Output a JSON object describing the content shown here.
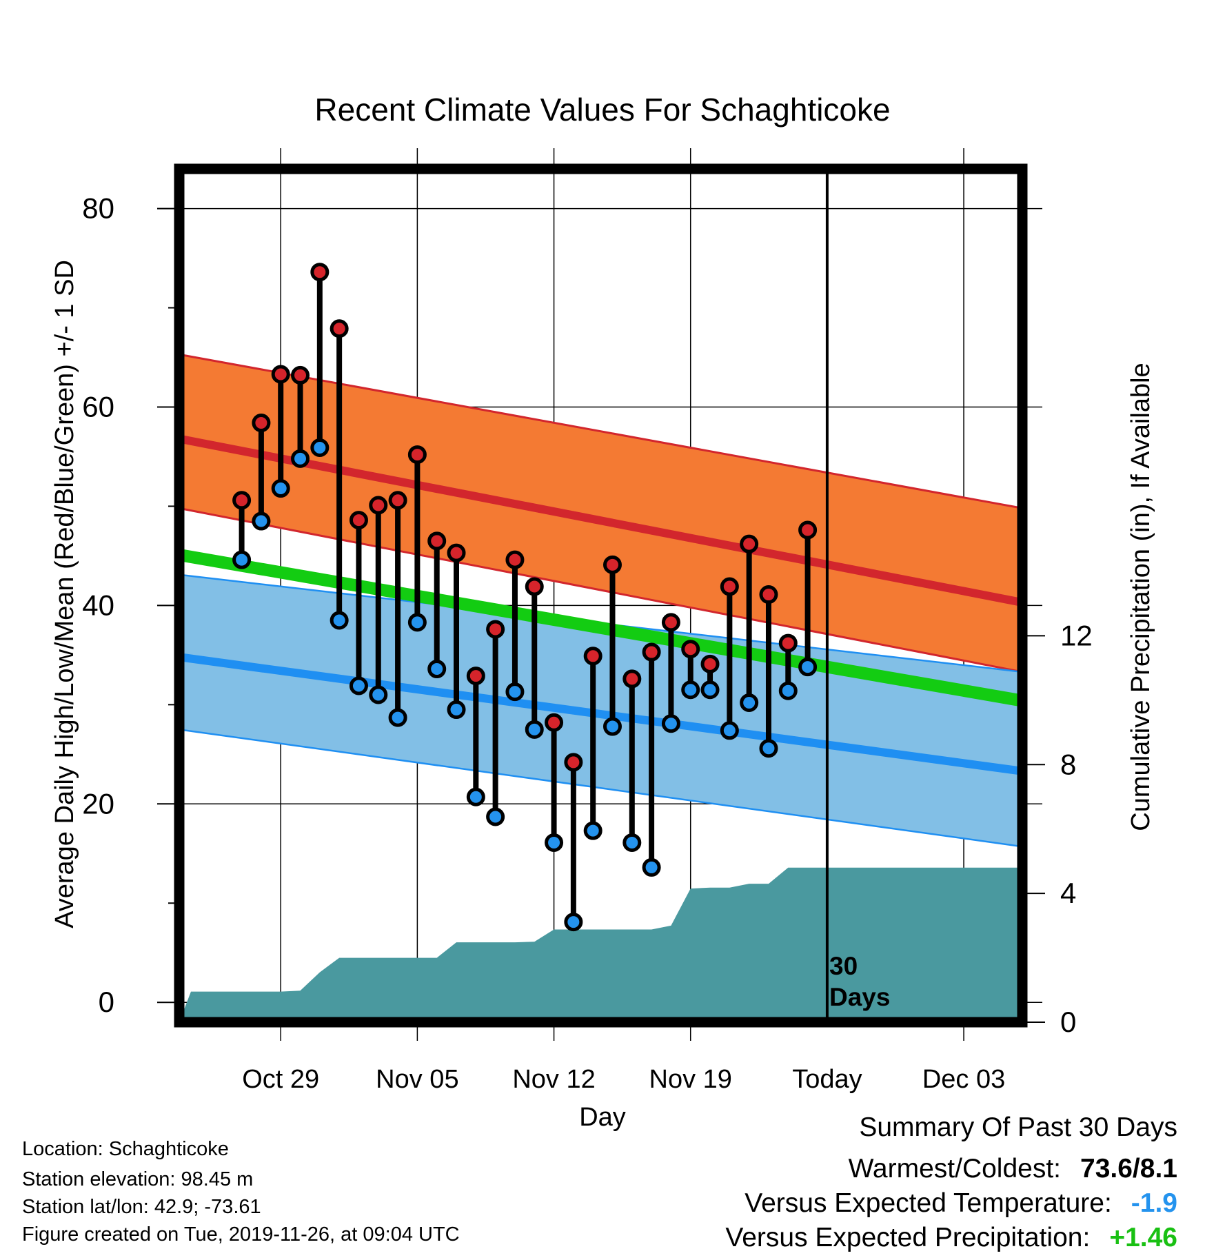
{
  "chart_data": {
    "type": "climate-range",
    "title": "Recent Climate Values For Schaghticoke",
    "xlabel": "Day",
    "ylabel_left": "Average Daily High/Low/Mean (Red/Blue/Green) +/- 1 SD",
    "ylabel_right": "Cumulative Precipitation (in), If Available",
    "x_range_days": [
      -33.2,
      10.0
    ],
    "y_range_left": [
      -2,
      84
    ],
    "y_range_right": [
      0,
      26.5
    ],
    "x_ticks": [
      {
        "day": -28,
        "label": "Oct 29"
      },
      {
        "day": -21,
        "label": "Nov 05"
      },
      {
        "day": -14,
        "label": "Nov 12"
      },
      {
        "day": -7,
        "label": "Nov 19"
      },
      {
        "day": 0,
        "label": "Today"
      },
      {
        "day": 7,
        "label": "Dec 03"
      }
    ],
    "y_ticks_left": [
      0,
      20,
      40,
      60,
      80
    ],
    "y_ticks_right": [
      0,
      4,
      8,
      12
    ],
    "today_label_line1": "30",
    "today_label_line2": "Days",
    "normals": {
      "start_day": -33.2,
      "end_day": 10.0,
      "high_plus_sd": [
        65.3,
        49.8
      ],
      "high_mean": [
        56.8,
        40.3
      ],
      "high_minus_sd": [
        49.8,
        33.3
      ],
      "mean": [
        45.1,
        30.4
      ],
      "low_plus_sd": [
        43.1,
        33.3
      ],
      "low_mean": [
        34.8,
        23.3
      ],
      "low_minus_sd": [
        27.5,
        15.7
      ]
    },
    "daily": [
      {
        "day": -30,
        "high": 50.6,
        "low": 44.6
      },
      {
        "day": -29,
        "high": 58.4,
        "low": 48.5
      },
      {
        "day": -28,
        "high": 63.3,
        "low": 51.8
      },
      {
        "day": -27,
        "high": 63.2,
        "low": 54.8
      },
      {
        "day": -26,
        "high": 73.6,
        "low": 55.9
      },
      {
        "day": -25,
        "high": 67.9,
        "low": 38.5
      },
      {
        "day": -24,
        "high": 48.6,
        "low": 31.9
      },
      {
        "day": -23,
        "high": 50.1,
        "low": 31.0
      },
      {
        "day": -22,
        "high": 50.6,
        "low": 28.7
      },
      {
        "day": -21,
        "high": 55.2,
        "low": 38.3
      },
      {
        "day": -20,
        "high": 46.5,
        "low": 33.6
      },
      {
        "day": -19,
        "high": 45.3,
        "low": 29.5
      },
      {
        "day": -18,
        "high": 32.9,
        "low": 20.7
      },
      {
        "day": -17,
        "high": 37.6,
        "low": 18.7
      },
      {
        "day": -16,
        "high": 44.6,
        "low": 31.3
      },
      {
        "day": -15,
        "high": 41.9,
        "low": 27.5
      },
      {
        "day": -14,
        "high": 28.2,
        "low": 16.1
      },
      {
        "day": -13,
        "high": 24.2,
        "low": 8.1
      },
      {
        "day": -12,
        "high": 34.9,
        "low": 17.3
      },
      {
        "day": -11,
        "high": 44.1,
        "low": 27.8
      },
      {
        "day": -10,
        "high": 32.6,
        "low": 16.1
      },
      {
        "day": -9,
        "high": 35.3,
        "low": 13.6
      },
      {
        "day": -8,
        "high": 38.3,
        "low": 28.1
      },
      {
        "day": -7,
        "high": 35.6,
        "low": 31.5
      },
      {
        "day": -6,
        "high": 34.1,
        "low": 31.5
      },
      {
        "day": -5,
        "high": 41.9,
        "low": 27.4
      },
      {
        "day": -4,
        "high": 46.2,
        "low": 30.2
      },
      {
        "day": -3,
        "high": 41.1,
        "low": 25.6
      },
      {
        "day": -2,
        "high": 36.2,
        "low": 31.4
      },
      {
        "day": -1,
        "high": 47.6,
        "low": 33.8
      }
    ],
    "precip_cumulative": [
      [
        -33.2,
        0.0
      ],
      [
        -32.6,
        0.95
      ],
      [
        -30.1,
        0.95
      ],
      [
        -29.0,
        0.95
      ],
      [
        -28.0,
        0.95
      ],
      [
        -27.0,
        0.98
      ],
      [
        -26.0,
        1.55
      ],
      [
        -25.0,
        2.0
      ],
      [
        -23.0,
        2.0
      ],
      [
        -22.0,
        2.0
      ],
      [
        -21.0,
        2.0
      ],
      [
        -20.0,
        2.0
      ],
      [
        -19.0,
        2.48
      ],
      [
        -17.0,
        2.48
      ],
      [
        -16.0,
        2.48
      ],
      [
        -15.0,
        2.5
      ],
      [
        -14.0,
        2.88
      ],
      [
        -13.0,
        2.88
      ],
      [
        -11.0,
        2.88
      ],
      [
        -10.0,
        2.88
      ],
      [
        -9.0,
        2.88
      ],
      [
        -8.0,
        3.0
      ],
      [
        -7.0,
        4.15
      ],
      [
        -6.0,
        4.18
      ],
      [
        -5.0,
        4.18
      ],
      [
        -4.0,
        4.3
      ],
      [
        -3.0,
        4.3
      ],
      [
        -2.0,
        4.8
      ],
      [
        -1.0,
        4.8
      ],
      [
        0.0,
        4.8
      ],
      [
        10.0,
        4.8
      ]
    ],
    "colors": {
      "high_band": "#f47a33",
      "high_line": "#d2262d",
      "mean_band": "#13cc12",
      "low_band": "#82bfe6",
      "low_line": "#1f8ff2",
      "overlap": "#971b1f",
      "precip": "#4a999f",
      "high_dot": "#d6242b",
      "low_dot": "#2493ee"
    }
  },
  "info": {
    "location": "Location: Schaghticoke",
    "elevation": "Station elevation: 98.45 m",
    "latlon": "Station lat/lon: 42.9; -73.61",
    "created": "Figure created on Tue, 2019-11-26, at 09:04 UTC"
  },
  "summary": {
    "title": "Summary Of Past 30 Days",
    "warmest_coldest_label": "Warmest/Coldest:",
    "warmest_coldest_value": "73.6/8.1",
    "temp_label": "Versus Expected Temperature:",
    "temp_value": "-1.9",
    "temp_color": "#2493ee",
    "precip_label": "Versus Expected Precipitation:",
    "precip_value": "+1.46",
    "precip_color": "#19c013"
  }
}
